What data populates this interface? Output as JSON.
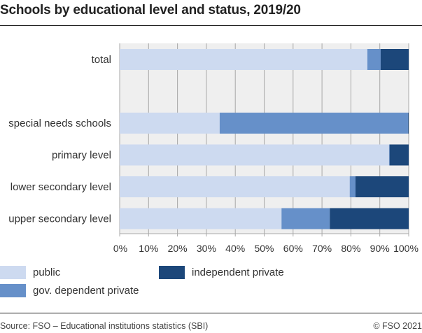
{
  "chart_data": {
    "type": "bar",
    "orientation": "horizontal",
    "stacked": true,
    "title": "Schools by educational level and status, 2019/20",
    "categories": [
      "total",
      "special needs schools",
      "primary level",
      "lower secondary level",
      "upper secondary level"
    ],
    "series": [
      {
        "name": "public",
        "color": "#cddaf0",
        "values": [
          85.7,
          34.6,
          93.2,
          79.6,
          56.0
        ]
      },
      {
        "name": "gov. dependent private",
        "color": "#6690c9",
        "values": [
          4.6,
          65.2,
          0.2,
          2.0,
          16.7
        ]
      },
      {
        "name": "independent private",
        "color": "#1c477a",
        "values": [
          9.7,
          0.2,
          6.6,
          18.4,
          27.3
        ]
      }
    ],
    "xlim": [
      0,
      100
    ],
    "xticks": [
      "0%",
      "10%",
      "20%",
      "30%",
      "40%",
      "50%",
      "60%",
      "70%",
      "80%",
      "90%",
      "100%"
    ],
    "grid": true,
    "legend_position": "bottom"
  },
  "footer": {
    "source": "Source: FSO – Educational institutions statistics (SBI)",
    "copyright": "© FSO 2021"
  }
}
